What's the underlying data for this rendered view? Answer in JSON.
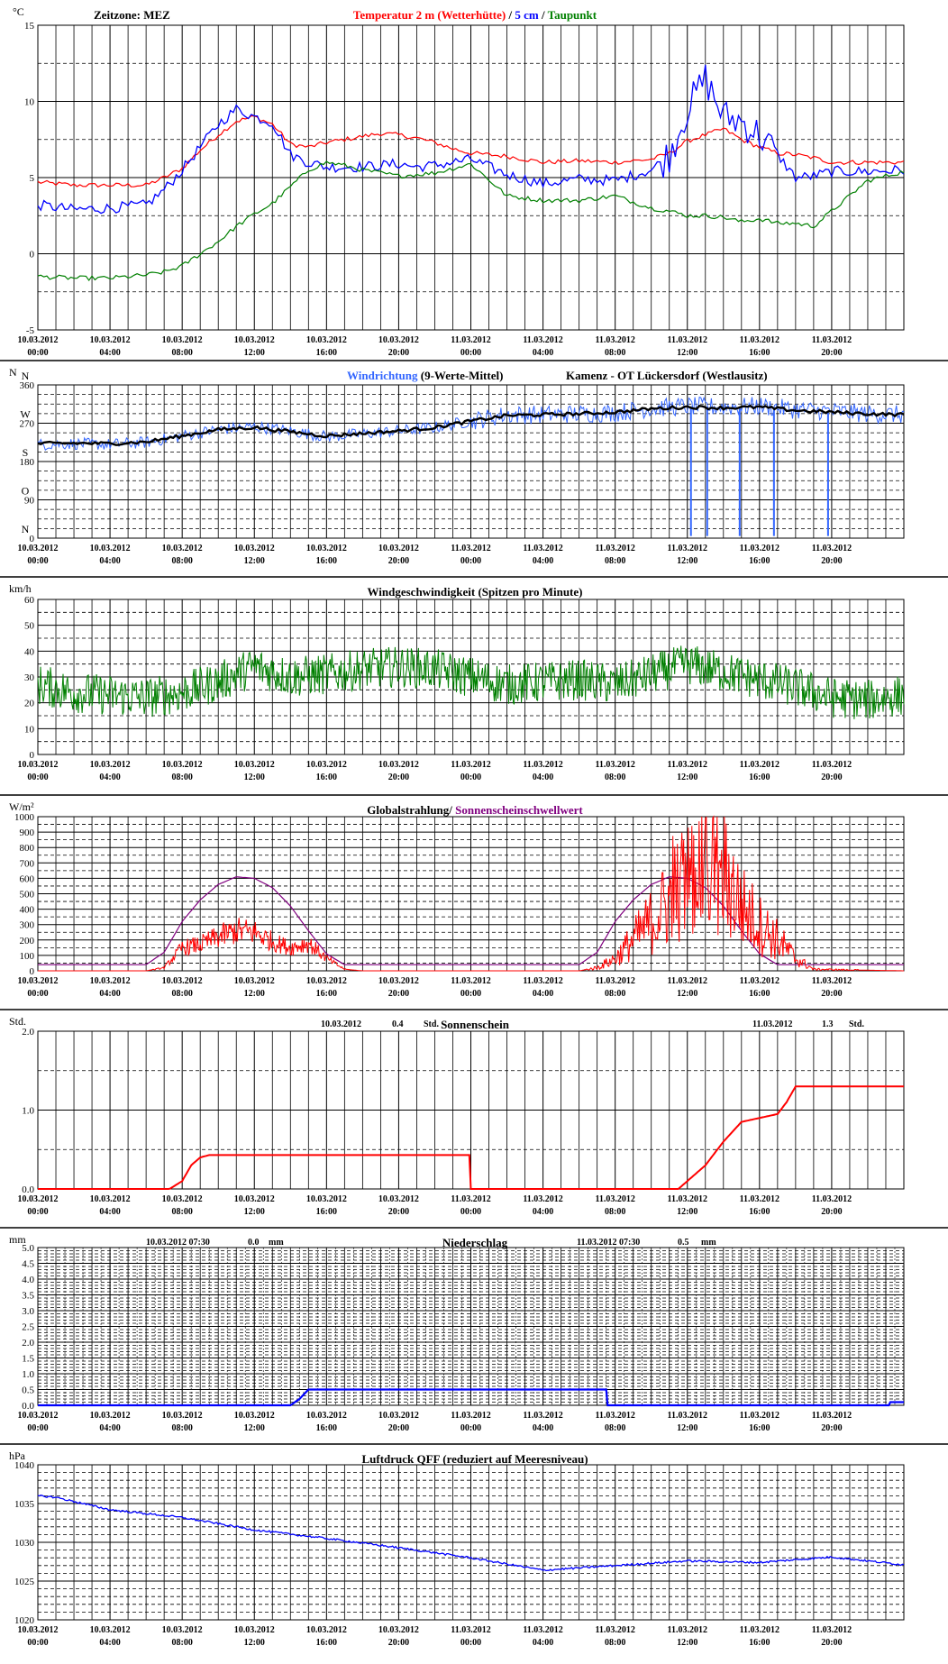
{
  "timezone_label": "Zeitzone: MEZ",
  "x_ticks": [
    {
      "date": "10.03.2012",
      "time": "00:00"
    },
    {
      "date": "10.03.2012",
      "time": "04:00"
    },
    {
      "date": "10.03.2012",
      "time": "08:00"
    },
    {
      "date": "10.03.2012",
      "time": "12:00"
    },
    {
      "date": "10.03.2012",
      "time": "16:00"
    },
    {
      "date": "10.03.2012",
      "time": "20:00"
    },
    {
      "date": "11.03.2012",
      "time": "00:00"
    },
    {
      "date": "11.03.2012",
      "time": "04:00"
    },
    {
      "date": "11.03.2012",
      "time": "08:00"
    },
    {
      "date": "11.03.2012",
      "time": "12:00"
    },
    {
      "date": "11.03.2012",
      "time": "16:00"
    },
    {
      "date": "11.03.2012",
      "time": "20:00"
    }
  ],
  "colors": {
    "red": "#ff0000",
    "blue": "#0000ff",
    "green": "#008000",
    "purple": "#800080",
    "lightblue": "#3366ff",
    "black": "#000000"
  },
  "chart_data": [
    {
      "id": "temperature",
      "type": "line",
      "unit": "°C",
      "ylim": [
        -5,
        15
      ],
      "y_ticks": [
        "-5",
        "0",
        "5",
        "10",
        "15"
      ],
      "title_parts": [
        {
          "text": "Temperatur 2 m (Wetterhütte)",
          "color": "red"
        },
        {
          "text": "  /  ",
          "color": "black"
        },
        {
          "text": "5 cm",
          "color": "blue"
        },
        {
          "text": " / ",
          "color": "black"
        },
        {
          "text": "Taupunkt",
          "color": "green"
        }
      ],
      "x_hours": [
        0,
        2,
        4,
        6,
        7,
        8,
        9,
        10,
        11,
        12,
        13,
        14,
        15,
        16,
        17,
        18,
        19,
        20,
        21,
        22,
        23,
        24,
        26,
        28,
        30,
        32,
        34,
        35,
        36,
        37,
        38,
        39,
        40,
        41,
        42,
        43,
        44,
        46,
        48
      ],
      "series": [
        {
          "name": "Temperatur 2 m (Wetterhütte)",
          "color": "red",
          "values": [
            4.7,
            4.5,
            4.5,
            4.5,
            5.0,
            5.6,
            6.8,
            7.8,
            8.7,
            9.0,
            8.5,
            7.2,
            7.0,
            7.3,
            7.5,
            7.7,
            7.9,
            7.8,
            7.6,
            7.3,
            6.9,
            6.6,
            6.4,
            6.0,
            6.1,
            6.0,
            6.2,
            6.6,
            7.4,
            7.8,
            8.2,
            7.5,
            7.0,
            6.6,
            6.5,
            6.3,
            6.0,
            6.0,
            6.0
          ]
        },
        {
          "name": "5 cm",
          "color": "blue",
          "values": [
            3.2,
            2.9,
            3.0,
            3.2,
            4.2,
            5.5,
            7.0,
            8.5,
            9.5,
            9.0,
            8.6,
            6.5,
            6.0,
            5.7,
            5.7,
            5.7,
            5.8,
            5.9,
            5.7,
            5.8,
            6.0,
            6.2,
            5.2,
            4.6,
            4.9,
            4.8,
            5.5,
            6.5,
            9.5,
            11.5,
            9.0,
            8.7,
            7.8,
            6.5,
            5.0,
            5.1,
            5.4,
            5.4,
            5.5
          ]
        },
        {
          "name": "Taupunkt",
          "color": "green",
          "values": [
            -1.5,
            -1.6,
            -1.6,
            -1.4,
            -1.2,
            -0.8,
            0.0,
            0.8,
            1.8,
            2.6,
            3.3,
            4.4,
            5.5,
            6.0,
            5.8,
            5.5,
            5.3,
            5.1,
            5.2,
            5.3,
            5.6,
            5.9,
            3.8,
            3.5,
            3.5,
            3.8,
            3.0,
            2.8,
            2.5,
            2.5,
            2.4,
            2.1,
            2.3,
            2.0,
            2.0,
            1.8,
            2.8,
            4.8,
            5.4
          ]
        }
      ]
    },
    {
      "id": "wind_direction",
      "type": "line",
      "unit": "N",
      "ylim": [
        0,
        360
      ],
      "y_ticks": [
        "0",
        "90",
        "180",
        "270",
        "360"
      ],
      "direction_labels": [
        "N",
        "O",
        "S",
        "W",
        "N"
      ],
      "title_parts": [
        {
          "text": "Windrichtung",
          "color": "lightblue"
        },
        {
          "text": " (9-Werte-Mittel)",
          "color": "black"
        }
      ],
      "station": "Kamenz - OT Lückersdorf (Westlausitz)",
      "x_hours": [
        0,
        2,
        4,
        6,
        8,
        10,
        12,
        14,
        16,
        18,
        20,
        22,
        24,
        26,
        28,
        30,
        32,
        34,
        36,
        38,
        40,
        42,
        44,
        46,
        48
      ],
      "series": [
        {
          "name": "Windrichtung",
          "color": "lightblue",
          "values": [
            220,
            222,
            220,
            225,
            240,
            255,
            262,
            252,
            238,
            245,
            252,
            260,
            275,
            290,
            290,
            292,
            295,
            305,
            310,
            308,
            310,
            302,
            298,
            292,
            290
          ]
        },
        {
          "name": "9-Werte-Mittel",
          "color": "black",
          "values": [
            222,
            223,
            222,
            226,
            240,
            255,
            260,
            250,
            240,
            246,
            252,
            260,
            275,
            288,
            290,
            292,
            296,
            304,
            308,
            306,
            308,
            300,
            296,
            292,
            290
          ]
        }
      ],
      "dropouts_hours": [
        36.2,
        37.1,
        38.9,
        40.8,
        43.8
      ]
    },
    {
      "id": "wind_speed",
      "type": "line",
      "unit": "km/h",
      "ylim": [
        0,
        60
      ],
      "y_ticks": [
        "0",
        "10",
        "20",
        "30",
        "40",
        "50",
        "60"
      ],
      "title_parts": [
        {
          "text": "Windgeschwindigkeit (Spitzen pro Minute)",
          "color": "black"
        }
      ],
      "x_hours": [
        0,
        2,
        4,
        6,
        8,
        10,
        12,
        14,
        16,
        18,
        20,
        22,
        24,
        26,
        28,
        30,
        32,
        34,
        36,
        38,
        40,
        42,
        44,
        46,
        48
      ],
      "series": [
        {
          "name": "Windgeschwindigkeit",
          "color": "green",
          "values": [
            27,
            24,
            23,
            22,
            24,
            28,
            34,
            30,
            31,
            33,
            34,
            33,
            30,
            27,
            28,
            29,
            27,
            31,
            35,
            32,
            29,
            26,
            22,
            21,
            23
          ]
        }
      ]
    },
    {
      "id": "radiation",
      "type": "line",
      "unit": "W/m²",
      "ylim": [
        0,
        1000
      ],
      "y_ticks": [
        "0",
        "100",
        "200",
        "300",
        "400",
        "500",
        "600",
        "700",
        "800",
        "900",
        "1000"
      ],
      "title_parts": [
        {
          "text": "Globalstrahlung/ ",
          "color": "black"
        },
        {
          "text": "Sonnenscheinschwellwert",
          "color": "purple"
        }
      ],
      "x_hours": [
        0,
        6,
        7,
        8,
        9,
        10,
        11,
        12,
        13,
        14,
        15,
        16,
        17,
        18,
        24,
        30,
        31,
        32,
        33,
        34,
        35,
        36,
        37,
        38,
        39,
        40,
        41,
        42,
        43,
        48
      ],
      "series": [
        {
          "name": "Globalstrahlung",
          "color": "red",
          "values": [
            0,
            0,
            20,
            150,
            170,
            220,
            260,
            250,
            190,
            150,
            180,
            80,
            10,
            0,
            0,
            0,
            20,
            80,
            200,
            320,
            450,
            600,
            700,
            650,
            420,
            300,
            200,
            80,
            10,
            0
          ]
        },
        {
          "name": "Sonnenscheinschwellwert",
          "color": "purple",
          "values": [
            40,
            40,
            120,
            320,
            460,
            560,
            610,
            600,
            540,
            420,
            260,
            110,
            40,
            40,
            40,
            40,
            120,
            320,
            460,
            560,
            610,
            600,
            540,
            420,
            260,
            110,
            40,
            40,
            40,
            40
          ]
        }
      ]
    },
    {
      "id": "sunshine",
      "type": "line",
      "unit": "Std.",
      "ylim": [
        0,
        2
      ],
      "y_ticks": [
        "0.0",
        "1.0",
        "2.0"
      ],
      "title_parts": [
        {
          "text": "Sonnenschein",
          "color": "black"
        }
      ],
      "annotations": [
        {
          "date": "10.03.2012",
          "value": "0.4",
          "unit": "Std."
        },
        {
          "date": "11.03.2012",
          "value": "1.3",
          "unit": "Std."
        }
      ],
      "x_hours": [
        0,
        7.3,
        8,
        8.5,
        9,
        9.5,
        23.99,
        24,
        35.5,
        36,
        37,
        38,
        39,
        40,
        41,
        41.5,
        42,
        48
      ],
      "series": [
        {
          "name": "Sonnenschein",
          "color": "red",
          "values": [
            0,
            0,
            0.1,
            0.3,
            0.4,
            0.43,
            0.43,
            0,
            0,
            0.1,
            0.3,
            0.6,
            0.85,
            0.9,
            0.95,
            1.1,
            1.3,
            1.3
          ]
        }
      ]
    },
    {
      "id": "precipitation",
      "type": "line",
      "unit": "mm",
      "ylim": [
        0,
        5
      ],
      "y_ticks": [
        "0.0",
        "0.5",
        "1.0",
        "1.5",
        "2.0",
        "2.5",
        "3.0",
        "3.5",
        "4.0",
        "4.5",
        "5.0"
      ],
      "title_parts": [
        {
          "text": "Niederschlag",
          "color": "black"
        }
      ],
      "annotations": [
        {
          "date": "10.03.2012 07:30",
          "value": "0.0",
          "unit": "mm"
        },
        {
          "date": "11.03.2012 07:30",
          "value": "0.5",
          "unit": "mm"
        }
      ],
      "x_hours": [
        0,
        14,
        14.5,
        15,
        31.5,
        31.55,
        47.2,
        47.25,
        48
      ],
      "series": [
        {
          "name": "Niederschlag",
          "color": "blue",
          "values": [
            0,
            0,
            0.2,
            0.5,
            0.5,
            0,
            0,
            0.1,
            0.1
          ]
        }
      ]
    },
    {
      "id": "pressure",
      "type": "line",
      "unit": "hPa",
      "ylim": [
        1020,
        1040
      ],
      "y_ticks": [
        "1020",
        "1025",
        "1030",
        "1035",
        "1040"
      ],
      "title_parts": [
        {
          "text": "Luftdruck QFF (reduziert auf Meeresniveau)",
          "color": "black"
        }
      ],
      "x_hours": [
        0,
        1,
        4,
        8,
        12,
        16,
        20,
        24,
        28,
        30,
        32,
        36,
        40,
        44,
        48
      ],
      "series": [
        {
          "name": "Luftdruck QFF",
          "color": "blue",
          "values": [
            1036,
            1035.8,
            1034.2,
            1033.2,
            1031.6,
            1030.5,
            1029.3,
            1028.0,
            1026.4,
            1026.7,
            1027.0,
            1027.6,
            1027.4,
            1028.1,
            1027.1
          ]
        }
      ]
    }
  ]
}
